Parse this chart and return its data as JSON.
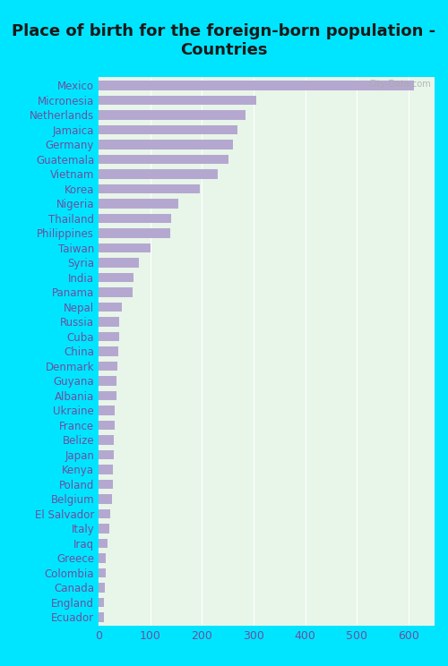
{
  "title": "Place of birth for the foreign-born population -\nCountries",
  "categories": [
    "Mexico",
    "Micronesia",
    "Netherlands",
    "Jamaica",
    "Germany",
    "Guatemala",
    "Vietnam",
    "Korea",
    "Nigeria",
    "Thailand",
    "Philippines",
    "Taiwan",
    "Syria",
    "India",
    "Panama",
    "Nepal",
    "Russia",
    "Cuba",
    "China",
    "Denmark",
    "Guyana",
    "Albania",
    "Ukraine",
    "France",
    "Belize",
    "Japan",
    "Kenya",
    "Poland",
    "Belgium",
    "El Salvador",
    "Italy",
    "Iraq",
    "Greece",
    "Colombia",
    "Canada",
    "England",
    "Ecuador"
  ],
  "values": [
    610,
    305,
    285,
    268,
    260,
    252,
    230,
    195,
    155,
    140,
    138,
    100,
    78,
    68,
    65,
    45,
    40,
    40,
    38,
    36,
    34,
    34,
    32,
    32,
    30,
    29,
    28,
    27,
    26,
    22,
    20,
    18,
    14,
    13,
    12,
    11,
    10
  ],
  "bar_color": "#b5a8d0",
  "background_color": "#e8f5e9",
  "outer_background": "#00e5ff",
  "xlim": [
    0,
    650
  ],
  "xticks": [
    0,
    100,
    200,
    300,
    400,
    500,
    600
  ],
  "title_fontsize": 13,
  "label_fontsize": 8.5,
  "tick_fontsize": 9,
  "watermark": "City-Data.com"
}
